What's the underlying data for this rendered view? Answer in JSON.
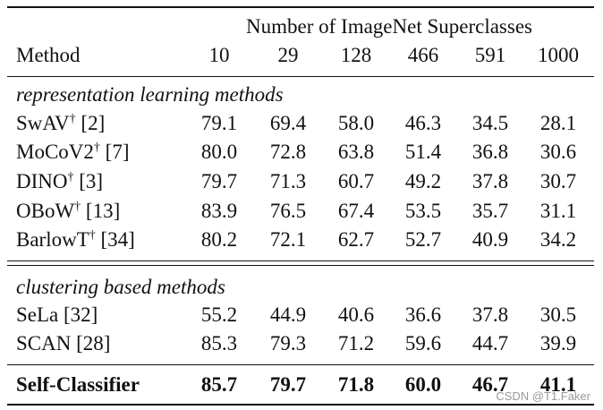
{
  "table": {
    "group_header": "Number of ImageNet Superclasses",
    "method_header": "Method",
    "columns": [
      "10",
      "29",
      "128",
      "466",
      "591",
      "1000"
    ],
    "sections": [
      {
        "title": "representation learning methods",
        "rows": [
          {
            "name": "SwAV",
            "mark": "†",
            "ref": "[2]",
            "values": [
              "79.1",
              "69.4",
              "58.0",
              "46.3",
              "34.5",
              "28.1"
            ]
          },
          {
            "name": "MoCoV2",
            "mark": "†",
            "ref": "[7]",
            "values": [
              "80.0",
              "72.8",
              "63.8",
              "51.4",
              "36.8",
              "30.6"
            ]
          },
          {
            "name": "DINO",
            "mark": "†",
            "ref": "[3]",
            "values": [
              "79.7",
              "71.3",
              "60.7",
              "49.2",
              "37.8",
              "30.7"
            ]
          },
          {
            "name": "OBoW",
            "mark": "†",
            "ref": "[13]",
            "values": [
              "83.9",
              "76.5",
              "67.4",
              "53.5",
              "35.7",
              "31.1"
            ]
          },
          {
            "name": "BarlowT",
            "mark": "†",
            "ref": "[34]",
            "values": [
              "80.2",
              "72.1",
              "62.7",
              "52.7",
              "40.9",
              "34.2"
            ]
          }
        ]
      },
      {
        "title": "clustering based methods",
        "rows": [
          {
            "name": "SeLa",
            "ref": "[32]",
            "values": [
              "55.2",
              "44.9",
              "40.6",
              "36.6",
              "37.8",
              "30.5"
            ]
          },
          {
            "name": "SCAN",
            "ref": "[28]",
            "values": [
              "85.3",
              "79.3",
              "71.2",
              "59.6",
              "44.7",
              "39.9"
            ]
          }
        ]
      }
    ],
    "final_row": {
      "name": "Self-Classifier",
      "values": [
        "85.7",
        "79.7",
        "71.8",
        "60.0",
        "46.7",
        "41.1"
      ]
    }
  },
  "watermark": "CSDN @T1.Faker"
}
